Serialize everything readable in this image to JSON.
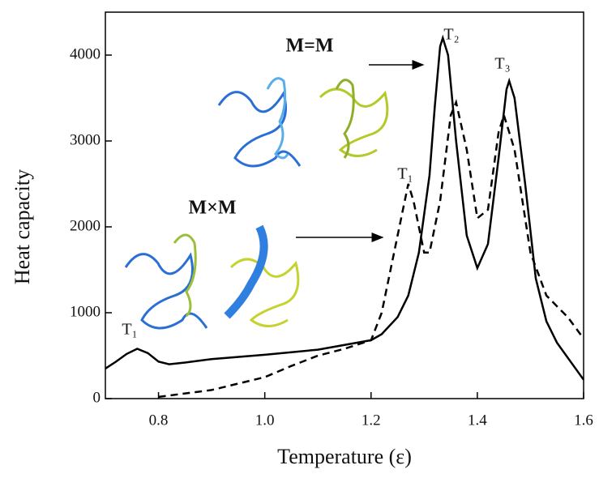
{
  "chart_data": {
    "type": "line",
    "xlabel": "Temperature (ε)",
    "ylabel": "Heat capacity",
    "xlim": [
      0.7,
      1.6
    ],
    "ylim": [
      0,
      4500
    ],
    "xticks": [
      0.8,
      {
        "value": 1,
        "label": "1.0"
      },
      1.2,
      1.4,
      1.6
    ],
    "yticks": [
      0,
      1000,
      2000,
      3000,
      4000
    ],
    "annotations": [
      "T₁",
      "T₂",
      "T₃",
      "T₁",
      "M=M",
      "M×M"
    ],
    "series": [
      {
        "color": "#000000",
        "dash": false,
        "x": [
          0.7,
          0.72,
          0.74,
          0.76,
          0.78,
          0.8,
          0.82,
          0.85,
          0.9,
          1.0,
          1.1,
          1.2,
          1.22,
          1.25,
          1.27,
          1.29,
          1.31,
          1.32,
          1.33,
          1.335,
          1.345,
          1.36,
          1.38,
          1.4,
          1.42,
          1.44,
          1.455,
          1.46,
          1.47,
          1.49,
          1.51,
          1.53,
          1.55,
          1.6
        ],
        "values": [
          350,
          430,
          520,
          580,
          530,
          430,
          400,
          420,
          460,
          510,
          570,
          680,
          750,
          950,
          1200,
          1700,
          2600,
          3400,
          4100,
          4200,
          4000,
          3000,
          1900,
          1520,
          1800,
          2800,
          3600,
          3700,
          3500,
          2500,
          1400,
          900,
          650,
          220
        ]
      },
      {
        "color": "#000000",
        "dash": true,
        "x": [
          0.8,
          0.9,
          1.0,
          1.05,
          1.1,
          1.15,
          1.2,
          1.22,
          1.24,
          1.26,
          1.27,
          1.28,
          1.3,
          1.31,
          1.33,
          1.35,
          1.36,
          1.38,
          1.4,
          1.42,
          1.44,
          1.45,
          1.47,
          1.5,
          1.53,
          1.57,
          1.6
        ],
        "values": [
          20,
          100,
          250,
          380,
          500,
          580,
          680,
          1000,
          1600,
          2200,
          2500,
          2300,
          1700,
          1700,
          2300,
          3300,
          3450,
          2900,
          2100,
          2200,
          3100,
          3300,
          2900,
          1700,
          1200,
          950,
          700
        ]
      }
    ]
  }
}
